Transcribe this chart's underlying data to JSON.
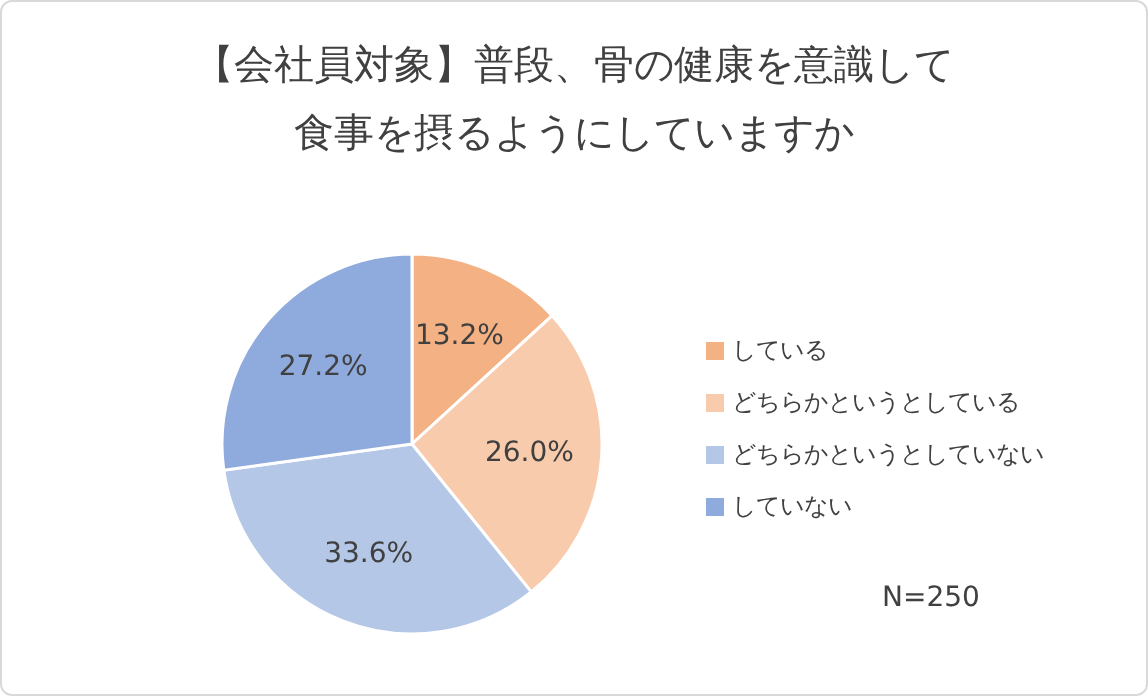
{
  "chart_data": {
    "type": "pie",
    "title": "【会社員対象】普段、骨の健康を意識して食事を摂るようにしていますか",
    "categories": [
      "している",
      "どちらかというとしている",
      "どちらかというとしていない",
      "していない"
    ],
    "values": [
      13.2,
      26.0,
      33.6,
      27.2
    ],
    "colors": [
      "#f4b183",
      "#f8cbad",
      "#b4c7e7",
      "#8faadc"
    ],
    "value_labels": [
      "13.2%",
      "26.0%",
      "33.6%",
      "27.2%"
    ],
    "legend": "right",
    "annotations": [
      "N=250"
    ]
  }
}
